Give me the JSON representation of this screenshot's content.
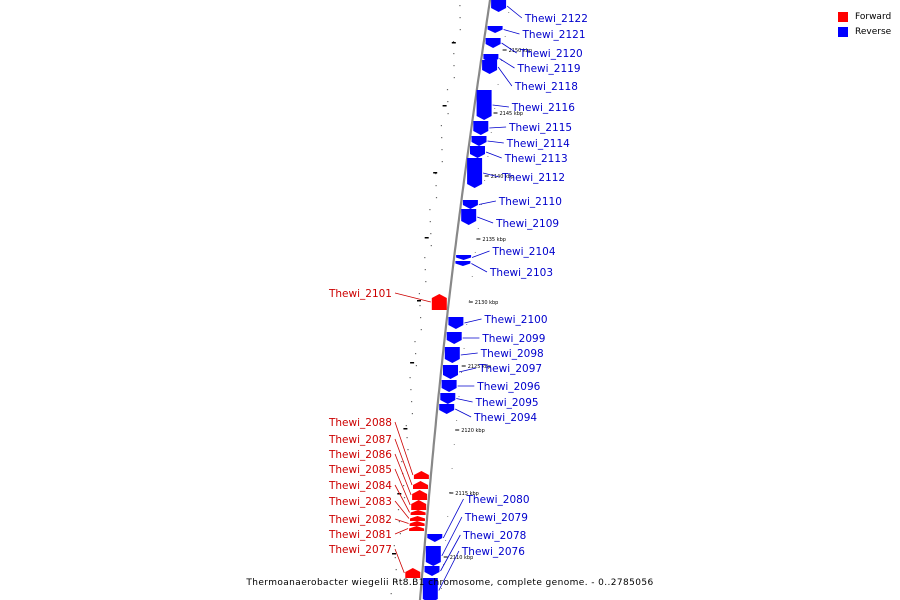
{
  "legend": [
    {
      "label": "Forward",
      "color": "#ff0000"
    },
    {
      "label": "Reverse",
      "color": "#0000ff"
    }
  ],
  "caption": "Thermoanaerobacter wiegelii Rt8.B1 chromosome, complete genome. - 0..2785056",
  "colors": {
    "forward": "#ff0000",
    "reverse": "#0000ff",
    "forward_label": "#cc0000",
    "reverse_label": "#0000cc",
    "backbone": "#888888"
  },
  "ticks": [
    "2150 kbp",
    "2145 kbp",
    "2140 kbp",
    "2135 kbp",
    "2130 kbp",
    "2125 kbp",
    "2120 kbp",
    "2115 kbp",
    "2110 kbp"
  ],
  "genes": [
    {
      "name": "Thewi_2122",
      "strand": "reverse"
    },
    {
      "name": "Thewi_2121",
      "strand": "reverse"
    },
    {
      "name": "Thewi_2120",
      "strand": "reverse"
    },
    {
      "name": "Thewi_2119",
      "strand": "reverse"
    },
    {
      "name": "Thewi_2118",
      "strand": "reverse"
    },
    {
      "name": "Thewi_2116",
      "strand": "reverse"
    },
    {
      "name": "Thewi_2115",
      "strand": "reverse"
    },
    {
      "name": "Thewi_2114",
      "strand": "reverse"
    },
    {
      "name": "Thewi_2113",
      "strand": "reverse"
    },
    {
      "name": "Thewi_2112",
      "strand": "reverse"
    },
    {
      "name": "Thewi_2110",
      "strand": "reverse"
    },
    {
      "name": "Thewi_2109",
      "strand": "reverse"
    },
    {
      "name": "Thewi_2104",
      "strand": "reverse"
    },
    {
      "name": "Thewi_2103",
      "strand": "reverse"
    },
    {
      "name": "Thewi_2101",
      "strand": "forward"
    },
    {
      "name": "Thewi_2100",
      "strand": "reverse"
    },
    {
      "name": "Thewi_2099",
      "strand": "reverse"
    },
    {
      "name": "Thewi_2098",
      "strand": "reverse"
    },
    {
      "name": "Thewi_2097",
      "strand": "reverse"
    },
    {
      "name": "Thewi_2096",
      "strand": "reverse"
    },
    {
      "name": "Thewi_2095",
      "strand": "reverse"
    },
    {
      "name": "Thewi_2094",
      "strand": "reverse"
    },
    {
      "name": "Thewi_2088",
      "strand": "forward"
    },
    {
      "name": "Thewi_2087",
      "strand": "forward"
    },
    {
      "name": "Thewi_2086",
      "strand": "forward"
    },
    {
      "name": "Thewi_2085",
      "strand": "forward"
    },
    {
      "name": "Thewi_2084",
      "strand": "forward"
    },
    {
      "name": "Thewi_2083",
      "strand": "forward"
    },
    {
      "name": "Thewi_2082",
      "strand": "forward"
    },
    {
      "name": "Thewi_2081",
      "strand": "forward"
    },
    {
      "name": "Thewi_2077",
      "strand": "forward"
    },
    {
      "name": "Thewi_2080",
      "strand": "reverse"
    },
    {
      "name": "Thewi_2079",
      "strand": "reverse"
    },
    {
      "name": "Thewi_2078",
      "strand": "reverse"
    },
    {
      "name": "Thewi_2076",
      "strand": "reverse"
    }
  ]
}
